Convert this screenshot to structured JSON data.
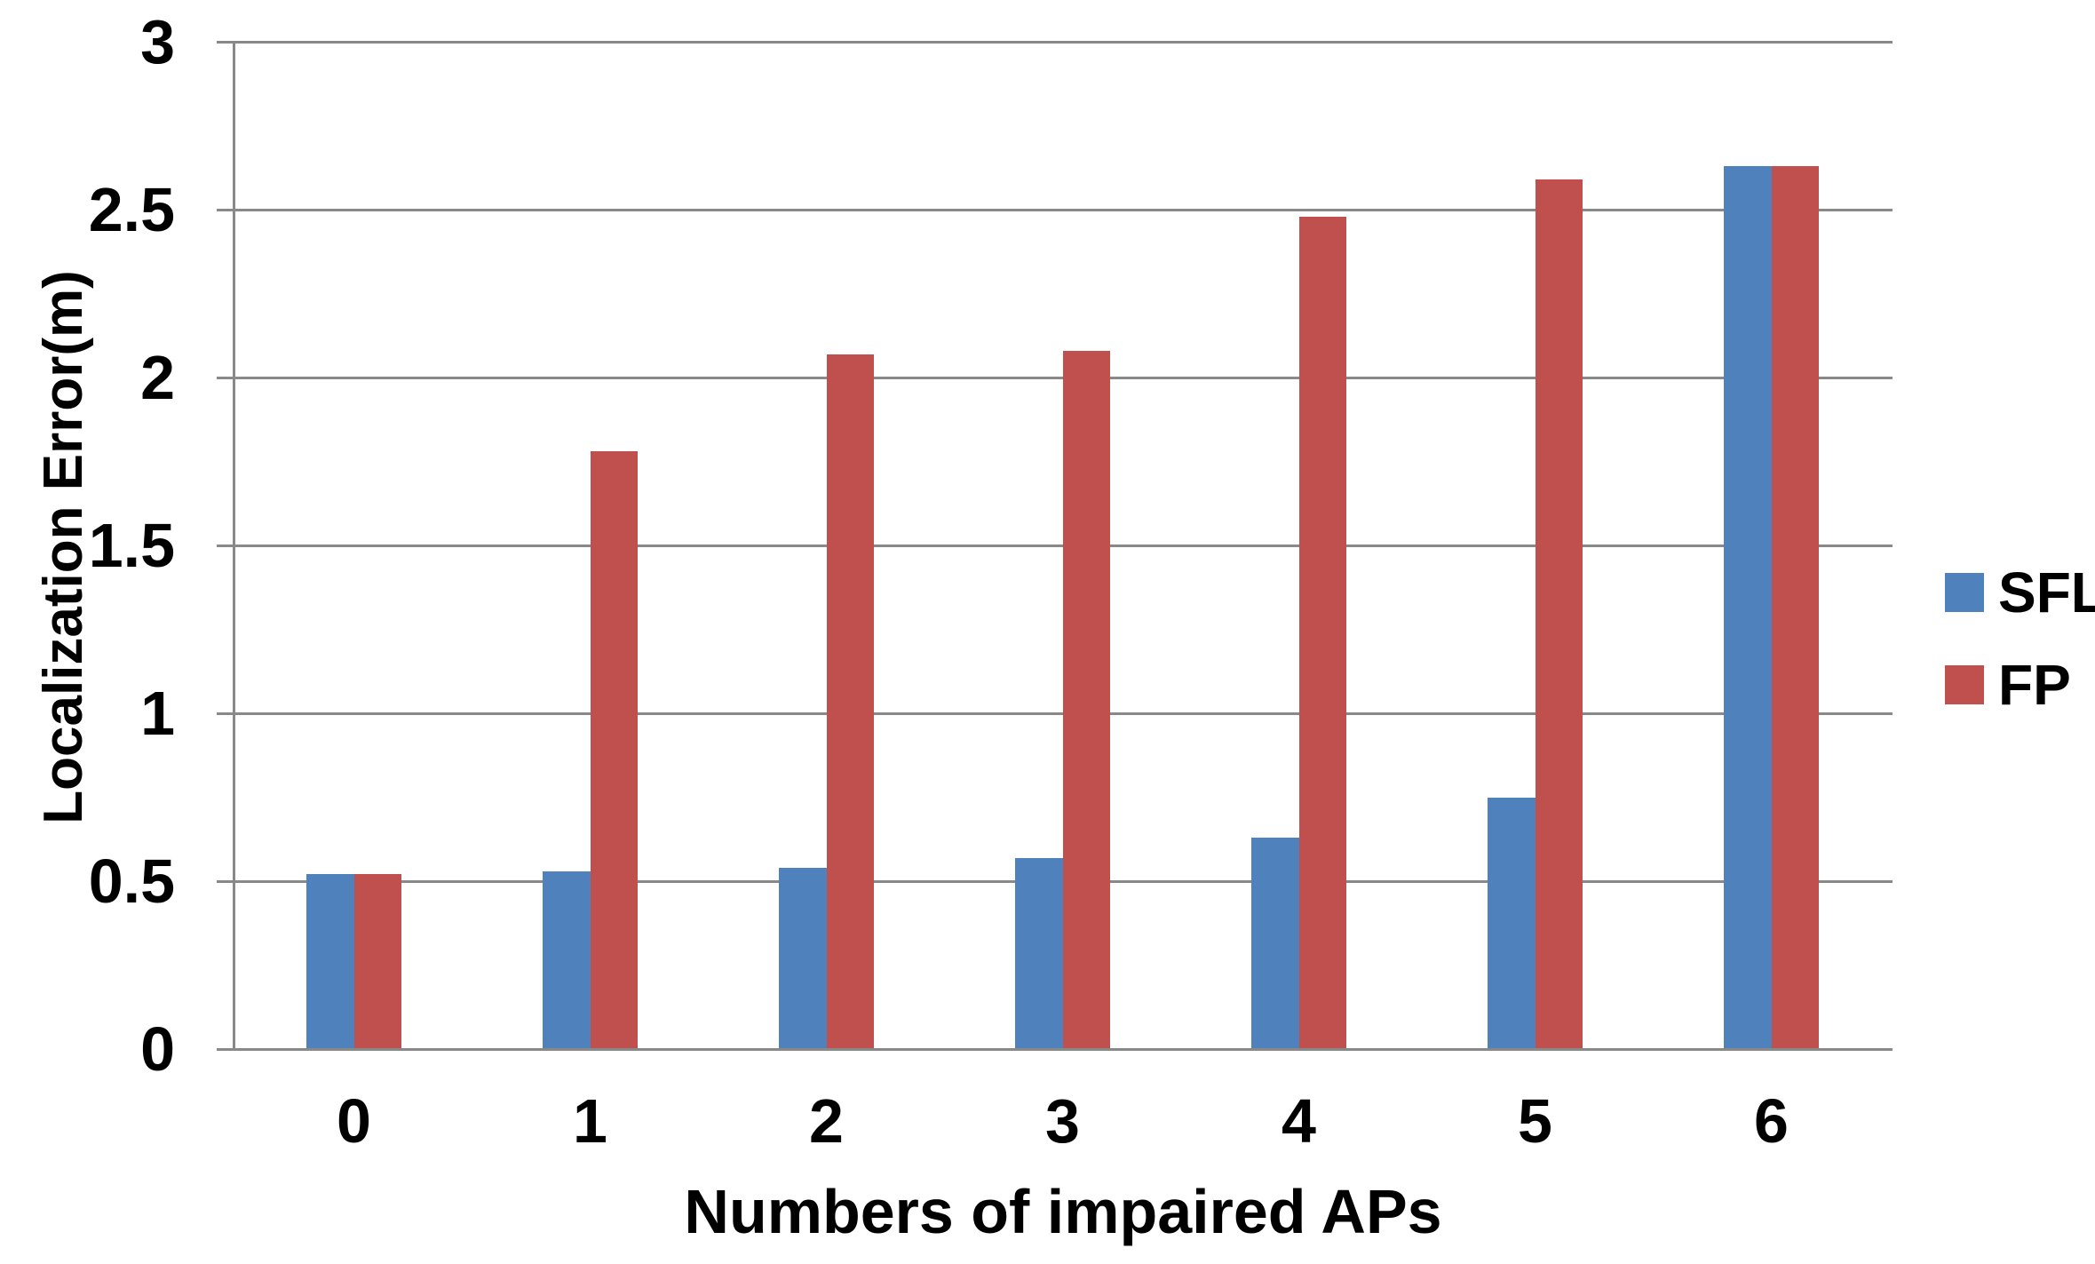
{
  "chart_data": {
    "type": "bar",
    "title": "",
    "categories": [
      "0",
      "1",
      "2",
      "3",
      "4",
      "5",
      "6"
    ],
    "series": [
      {
        "name": "SFL",
        "color": "#4F81BD",
        "values": [
          0.52,
          0.53,
          0.54,
          0.57,
          0.63,
          0.75,
          2.63
        ]
      },
      {
        "name": "FP",
        "color": "#C0504D",
        "values": [
          0.52,
          1.78,
          2.07,
          2.08,
          2.48,
          2.59,
          2.63
        ]
      }
    ],
    "xlabel": "Numbers of impaired APs",
    "ylabel": "Localization Error(m)",
    "ylim": [
      0,
      3
    ],
    "ytick_step": 0.5,
    "ytick_labels": [
      "0",
      "0.5",
      "1",
      "1.5",
      "2",
      "2.5",
      "3"
    ],
    "grid": true,
    "legend_position": "right",
    "grid_color": "#898989",
    "axis_color": "#898989",
    "text_color": "#000000",
    "background_color": "#ffffff"
  }
}
